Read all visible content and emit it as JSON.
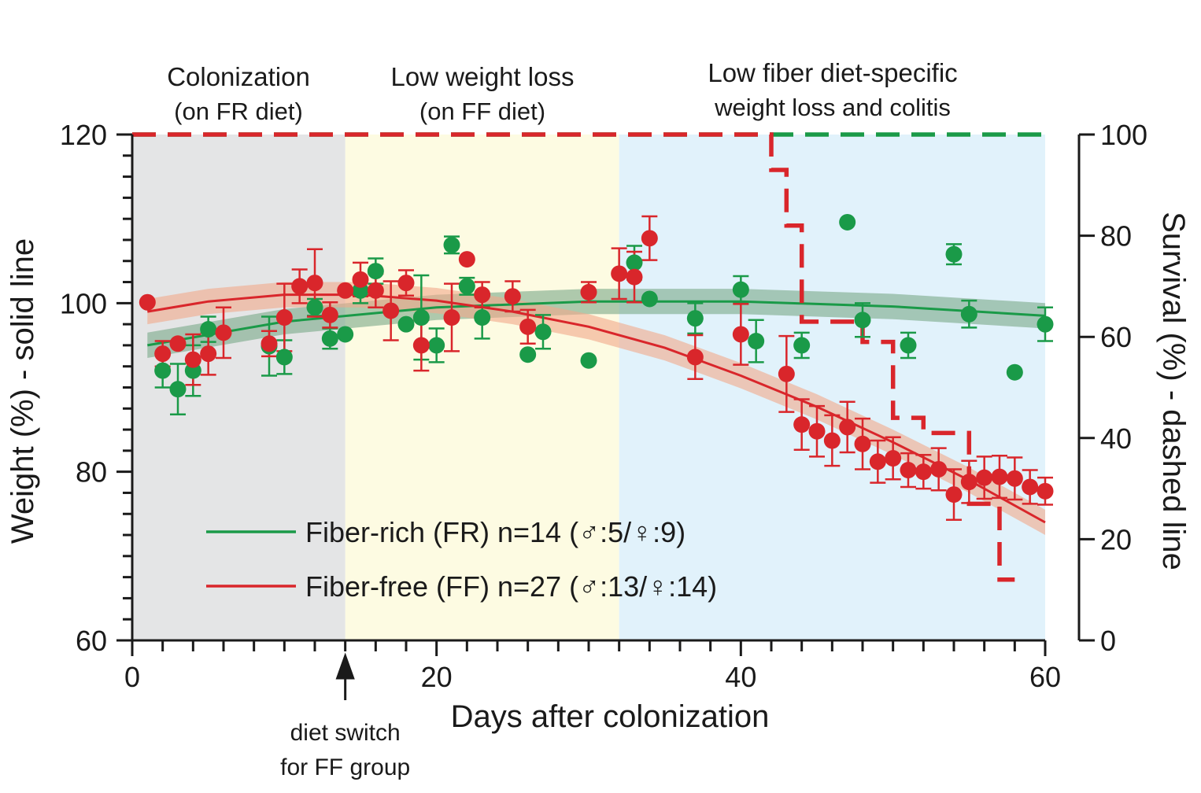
{
  "chart_data": {
    "type": "scatter",
    "xlabel": "Days after colonization",
    "ylabel_left": "Weight (%) - solid line",
    "ylabel_right": "Survival (%) - dashed line",
    "xlim": [
      0,
      60
    ],
    "ylim_left": [
      60,
      120
    ],
    "ylim_right": [
      0,
      100
    ],
    "x_ticks": [
      0,
      20,
      40,
      60
    ],
    "y_left_ticks": [
      60,
      80,
      100,
      120
    ],
    "y_right_ticks": [
      0,
      20,
      40,
      60,
      80,
      100
    ],
    "phases": [
      {
        "start": 0,
        "end": 14,
        "color": "#e4e5e6",
        "title": "Colonization",
        "subtitle": "(on FR diet)"
      },
      {
        "start": 14,
        "end": 32,
        "color": "#fdfbe2",
        "title": "Low weight loss",
        "subtitle": "(on FF diet)"
      },
      {
        "start": 32,
        "end": 60,
        "color": "#e1f2fb",
        "title": "Low fiber diet-specific",
        "subtitle": "weight loss and colitis"
      }
    ],
    "annotation": {
      "x": 14,
      "line1": "diet switch",
      "line2": "for FF group"
    },
    "series": [
      {
        "name": "Fiber-rich (FR) n=14 (♂:5/♀:9)",
        "color": "#1a9a48",
        "fit_band_color": "#7aa889",
        "points": [
          {
            "x": 2,
            "y": 92.0,
            "err": 2.0
          },
          {
            "x": 3,
            "y": 89.8,
            "err": 3.0
          },
          {
            "x": 4,
            "y": 92.0,
            "err": 3.0
          },
          {
            "x": 5,
            "y": 96.9,
            "err": 1.5
          },
          {
            "x": 9,
            "y": 94.9,
            "err": 3.5
          },
          {
            "x": 10,
            "y": 93.6,
            "err": 2.0
          },
          {
            "x": 12,
            "y": 99.5,
            "err": 1.0
          },
          {
            "x": 13,
            "y": 95.8,
            "err": 1.2
          },
          {
            "x": 14,
            "y": 96.3,
            "err": 0
          },
          {
            "x": 15,
            "y": 101.5,
            "err": 1.5
          },
          {
            "x": 16,
            "y": 103.8,
            "err": 1.5
          },
          {
            "x": 18,
            "y": 97.5,
            "err": 0
          },
          {
            "x": 19,
            "y": 98.3,
            "err": 5.0
          },
          {
            "x": 20,
            "y": 95.0,
            "err": 2.0
          },
          {
            "x": 21,
            "y": 106.9,
            "err": 1.0
          },
          {
            "x": 22,
            "y": 102.0,
            "err": 1.0
          },
          {
            "x": 23,
            "y": 98.3,
            "err": 2.5
          },
          {
            "x": 26,
            "y": 93.9,
            "err": 0
          },
          {
            "x": 27,
            "y": 96.6,
            "err": 2.0
          },
          {
            "x": 30,
            "y": 93.2,
            "err": 0
          },
          {
            "x": 33,
            "y": 104.8,
            "err": 2.0
          },
          {
            "x": 34,
            "y": 100.5,
            "err": 0
          },
          {
            "x": 37,
            "y": 98.2,
            "err": 1.8
          },
          {
            "x": 40,
            "y": 101.6,
            "err": 1.6
          },
          {
            "x": 41,
            "y": 95.5,
            "err": 2.5
          },
          {
            "x": 44,
            "y": 95.0,
            "err": 1.5
          },
          {
            "x": 47,
            "y": 109.6,
            "err": 0
          },
          {
            "x": 48,
            "y": 98.0,
            "err": 2.0
          },
          {
            "x": 51,
            "y": 95.0,
            "err": 1.5
          },
          {
            "x": 54,
            "y": 105.8,
            "err": 1.2
          },
          {
            "x": 55,
            "y": 98.7,
            "err": 1.6
          },
          {
            "x": 58,
            "y": 91.8,
            "err": 0
          },
          {
            "x": 60,
            "y": 97.5,
            "err": 2.0
          }
        ],
        "fit": {
          "x": [
            1,
            10,
            20,
            30,
            40,
            50,
            60
          ],
          "y": [
            95.0,
            97.8,
            99.5,
            100.2,
            100.2,
            99.6,
            98.5
          ]
        },
        "survival": {
          "x": [
            0,
            60
          ],
          "y": [
            100,
            100
          ]
        }
      },
      {
        "name": "Fiber-free (FF) n=27 (♂:13/♀:14)",
        "color": "#d9262b",
        "fit_band_color": "#f2a98a",
        "points": [
          {
            "x": 1,
            "y": 100.1,
            "err": 0
          },
          {
            "x": 2,
            "y": 94.0,
            "err": 1.5
          },
          {
            "x": 3,
            "y": 95.2,
            "err": 0
          },
          {
            "x": 4,
            "y": 93.3,
            "err": 3.0
          },
          {
            "x": 5,
            "y": 94.0,
            "err": 2.5
          },
          {
            "x": 6,
            "y": 96.5,
            "err": 3.0
          },
          {
            "x": 9,
            "y": 95.2,
            "err": 1.5
          },
          {
            "x": 10,
            "y": 98.3,
            "err": 4.0
          },
          {
            "x": 11,
            "y": 102.0,
            "err": 2.0
          },
          {
            "x": 12,
            "y": 102.4,
            "err": 4.0
          },
          {
            "x": 13,
            "y": 98.6,
            "err": 1.5
          },
          {
            "x": 14,
            "y": 101.5,
            "err": 0
          },
          {
            "x": 15,
            "y": 102.8,
            "err": 2.0
          },
          {
            "x": 16,
            "y": 101.5,
            "err": 2.0
          },
          {
            "x": 17,
            "y": 99.1,
            "err": 3.5
          },
          {
            "x": 18,
            "y": 102.4,
            "err": 1.5
          },
          {
            "x": 19,
            "y": 95.0,
            "err": 3.0
          },
          {
            "x": 21,
            "y": 98.3,
            "err": 4.0
          },
          {
            "x": 22,
            "y": 105.2,
            "err": 0
          },
          {
            "x": 23,
            "y": 101.0,
            "err": 1.5
          },
          {
            "x": 25,
            "y": 100.8,
            "err": 1.8
          },
          {
            "x": 26,
            "y": 97.2,
            "err": 2.0
          },
          {
            "x": 30,
            "y": 101.3,
            "err": 1.2
          },
          {
            "x": 32,
            "y": 103.5,
            "err": 3.0
          },
          {
            "x": 33,
            "y": 103.1,
            "err": 3.0
          },
          {
            "x": 34,
            "y": 107.7,
            "err": 2.6
          },
          {
            "x": 37,
            "y": 93.6,
            "err": 2.6
          },
          {
            "x": 40,
            "y": 96.3,
            "err": 3.6
          },
          {
            "x": 43,
            "y": 91.6,
            "err": 4.5
          },
          {
            "x": 44,
            "y": 85.6,
            "err": 3.0
          },
          {
            "x": 45,
            "y": 84.8,
            "err": 3.0
          },
          {
            "x": 46,
            "y": 83.7,
            "err": 3.0
          },
          {
            "x": 47,
            "y": 85.3,
            "err": 3.0
          },
          {
            "x": 48,
            "y": 83.3,
            "err": 3.0
          },
          {
            "x": 49,
            "y": 81.2,
            "err": 2.5
          },
          {
            "x": 50,
            "y": 81.6,
            "err": 2.5
          },
          {
            "x": 51,
            "y": 80.2,
            "err": 2.0
          },
          {
            "x": 52,
            "y": 80.0,
            "err": 2.0
          },
          {
            "x": 53,
            "y": 80.3,
            "err": 2.5
          },
          {
            "x": 54,
            "y": 77.3,
            "err": 3.0
          },
          {
            "x": 55,
            "y": 78.8,
            "err": 2.5
          },
          {
            "x": 56,
            "y": 79.3,
            "err": 2.5
          },
          {
            "x": 57,
            "y": 79.4,
            "err": 2.5
          },
          {
            "x": 58,
            "y": 79.2,
            "err": 2.5
          },
          {
            "x": 59,
            "y": 78.2,
            "err": 2.0
          },
          {
            "x": 60,
            "y": 77.7,
            "err": 1.6
          }
        ],
        "fit": {
          "x": [
            1,
            5,
            10,
            15,
            20,
            25,
            30,
            35,
            40,
            45,
            50,
            55,
            60
          ],
          "y": [
            99.0,
            100.2,
            101.0,
            101.0,
            100.3,
            99.0,
            97.2,
            94.7,
            91.4,
            87.7,
            83.5,
            79.0,
            74.0
          ]
        },
        "survival": {
          "x": [
            0,
            42,
            42,
            43,
            43,
            44,
            44,
            48,
            48,
            50,
            50,
            52,
            52,
            55,
            55,
            57,
            57,
            58
          ],
          "y": [
            100,
            100,
            93,
            93,
            82,
            82,
            63,
            63,
            59,
            59,
            44,
            44,
            41,
            41,
            27,
            27,
            12,
            12
          ]
        }
      }
    ],
    "fit_band_halfwidth": 1.5
  }
}
